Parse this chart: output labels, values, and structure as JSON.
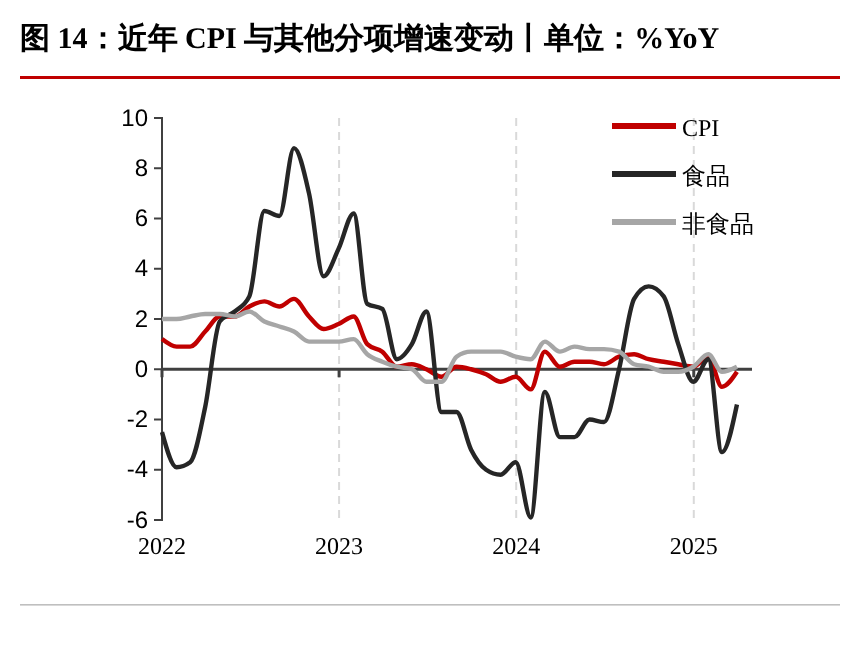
{
  "chart_data": {
    "type": "line",
    "title": "图 14：近年 CPI 与其他分项增速变动丨单位：%YoY",
    "x": [
      "2022-01-01",
      "2022-01-31",
      "2022-02-28",
      "2022-03-31",
      "2022-04-30",
      "2022-05-31",
      "2022-06-30",
      "2022-07-31",
      "2022-08-31",
      "2022-09-30",
      "2022-10-31",
      "2022-11-30",
      "2022-12-31",
      "2023-01-31",
      "2023-02-28",
      "2023-03-31",
      "2023-04-30",
      "2023-05-31",
      "2023-06-30",
      "2023-07-31",
      "2023-08-31",
      "2023-09-30",
      "2023-10-31",
      "2023-11-30",
      "2023-12-31",
      "2024-01-31",
      "2024-02-29",
      "2024-03-31",
      "2024-04-30",
      "2024-05-31",
      "2024-06-30",
      "2024-07-31",
      "2024-08-31",
      "2024-09-30",
      "2024-10-31",
      "2024-11-30",
      "2024-12-31",
      "2025-01-31",
      "2025-02-28",
      "2025-03-31"
    ],
    "series": [
      {
        "name": "CPI",
        "color": "#c00000",
        "values": [
          1.2,
          0.9,
          0.9,
          1.5,
          2.1,
          2.1,
          2.5,
          2.7,
          2.5,
          2.8,
          2.1,
          1.6,
          1.8,
          2.1,
          1.0,
          0.7,
          0.1,
          0.2,
          0.0,
          -0.3,
          0.1,
          0.0,
          -0.2,
          -0.5,
          -0.3,
          -0.8,
          0.7,
          0.1,
          0.3,
          0.3,
          0.2,
          0.5,
          0.6,
          0.4,
          0.3,
          0.2,
          0.1,
          0.5,
          -0.7,
          -0.1
        ]
      },
      {
        "name": "食品",
        "color": "#262626",
        "values": [
          -2.5,
          -3.9,
          -3.7,
          -1.5,
          1.9,
          2.3,
          2.9,
          6.3,
          6.1,
          8.8,
          7.0,
          3.7,
          4.8,
          6.2,
          2.6,
          2.4,
          0.4,
          1.0,
          2.3,
          -1.7,
          -1.7,
          -3.2,
          -4.0,
          -4.2,
          -3.7,
          -5.9,
          -0.9,
          -2.7,
          -2.7,
          -2.0,
          -2.1,
          0.0,
          2.8,
          3.3,
          2.9,
          1.0,
          -0.5,
          0.4,
          -3.3,
          -1.4
        ]
      },
      {
        "name": "非食品",
        "color": "#a6a6a6",
        "values": [
          2.0,
          2.0,
          2.1,
          2.2,
          2.2,
          2.1,
          2.3,
          1.9,
          1.7,
          1.5,
          1.1,
          1.1,
          1.1,
          1.2,
          0.6,
          0.3,
          0.1,
          0.0,
          -0.5,
          -0.5,
          0.5,
          0.7,
          0.7,
          0.7,
          0.5,
          0.4,
          1.1,
          0.7,
          0.9,
          0.8,
          0.8,
          0.7,
          0.2,
          0.1,
          -0.1,
          -0.1,
          0.1,
          0.6,
          -0.1,
          0.1
        ]
      }
    ],
    "xlim": [
      "2022-01-01",
      "2025-05-01"
    ],
    "xticks": [
      {
        "value": "2022-01-01",
        "label": "2022"
      },
      {
        "value": "2023-01-01",
        "label": "2023"
      },
      {
        "value": "2024-01-01",
        "label": "2024"
      },
      {
        "value": "2025-01-01",
        "label": "2025"
      }
    ],
    "ylim": [
      -6,
      10
    ],
    "yticks": [
      -6,
      -4,
      -2,
      0,
      2,
      4,
      6,
      8,
      10
    ],
    "ref_lines": [
      {
        "axis": "y",
        "value": 0,
        "color": "#404040"
      }
    ],
    "grid": "x",
    "legend": "top right",
    "marker": "none",
    "line_style": "solid"
  }
}
